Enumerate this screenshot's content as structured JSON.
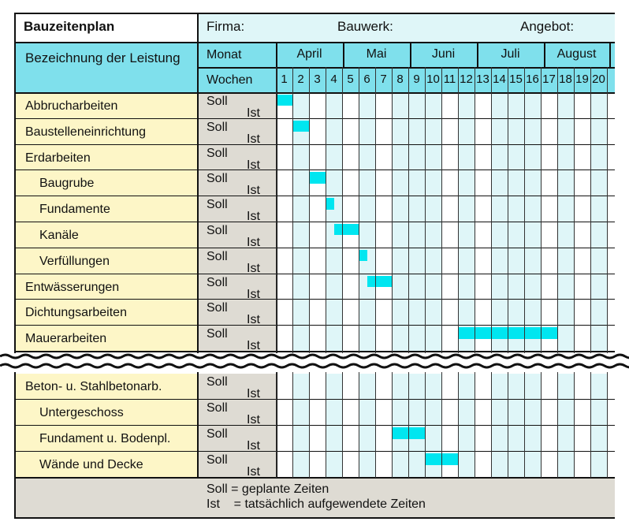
{
  "header": {
    "title": "Bauzeitenplan",
    "firma": "Firma:",
    "bauwerk": "Bauwerk:",
    "angebot": "Angebot:"
  },
  "columns": {
    "task_header": "Bezeichnung der Leistung",
    "month_label": "Monat",
    "weeks_label": "Wochen",
    "months": [
      "April",
      "Mai",
      "Juni",
      "Juli",
      "August"
    ],
    "weeks": [
      "1",
      "2",
      "3",
      "4",
      "5",
      "6",
      "7",
      "8",
      "9",
      "10",
      "11",
      "12",
      "13",
      "14",
      "15",
      "16",
      "17",
      "18",
      "19",
      "20"
    ]
  },
  "row_labels": {
    "soll": "Soll",
    "ist": "Ist"
  },
  "tasks_top": [
    {
      "label": "Abbrucharbeiten",
      "indent": false,
      "soll": [
        1,
        1
      ]
    },
    {
      "label": "Baustelleneinrichtung",
      "indent": false,
      "soll": [
        2,
        2
      ]
    },
    {
      "label": "Erdarbeiten",
      "indent": false,
      "soll": null
    },
    {
      "label": "Baugrube",
      "indent": true,
      "soll": [
        3,
        3
      ]
    },
    {
      "label": "Fundamente",
      "indent": true,
      "soll": [
        4,
        4.5
      ]
    },
    {
      "label": "Kanäle",
      "indent": true,
      "soll": [
        4.5,
        5
      ]
    },
    {
      "label": "Verfüllungen",
      "indent": true,
      "soll": [
        6,
        6.5
      ]
    },
    {
      "label": "Entwässerungen",
      "indent": false,
      "soll": [
        6.5,
        7
      ]
    },
    {
      "label": "Dichtungsarbeiten",
      "indent": false,
      "soll": null
    },
    {
      "label": "Mauerarbeiten",
      "indent": false,
      "soll": [
        12,
        17
      ]
    }
  ],
  "tasks_bottom": [
    {
      "label": "Beton- u. Stahlbetonarb.",
      "indent": false,
      "soll": null
    },
    {
      "label": "Untergeschoss",
      "indent": true,
      "soll": null
    },
    {
      "label": "Fundament u. Bodenpl.",
      "indent": true,
      "soll": [
        8,
        9
      ]
    },
    {
      "label": "Wände und Decke",
      "indent": true,
      "soll": [
        10,
        11
      ]
    }
  ],
  "legend": {
    "line1": "Soll = geplante Zeiten",
    "line2": "Ist    = tatsächlich aufgewendete Zeiten"
  },
  "colors": {
    "header_cyan": "#7fe0ec",
    "grid_light": "#dff6f8",
    "label_yellow": "#fdf6c7",
    "gray": "#dedbd3",
    "bar": "#00e6f0"
  }
}
